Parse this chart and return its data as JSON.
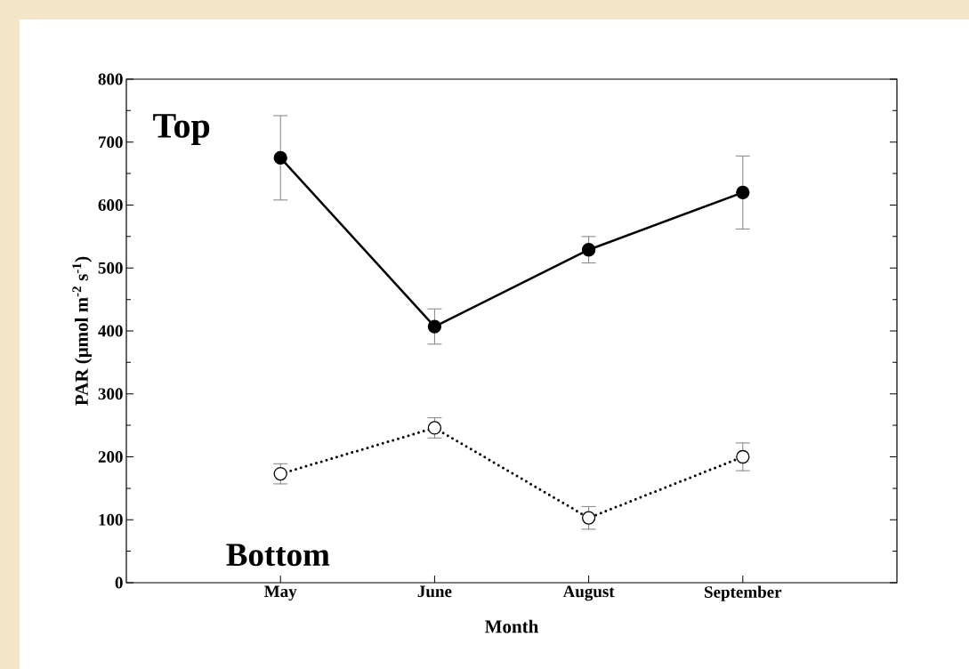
{
  "chart_data": {
    "type": "line",
    "xlabel": "Month",
    "ylabel": "PAR (μmol m$^{-2}$ s$^{-1}$)",
    "categories": [
      "May",
      "June",
      "August",
      "September"
    ],
    "series": [
      {
        "color": "#000000",
        "line_style": "solid",
        "values": [
          675,
          407,
          529,
          620
        ],
        "errors": [
          67,
          28,
          21,
          58
        ]
      },
      {
        "color": "#ffffff",
        "line_style": "dotted",
        "values": [
          173,
          246,
          103,
          200
        ],
        "errors": [
          16,
          16,
          18,
          22
        ]
      }
    ],
    "marker": "circle",
    "ylim": [
      0,
      800
    ],
    "yticks": [
      0,
      100,
      200,
      300,
      400,
      500,
      600,
      700,
      800
    ],
    "annotations": [
      "Top",
      "Bottom"
    ]
  }
}
